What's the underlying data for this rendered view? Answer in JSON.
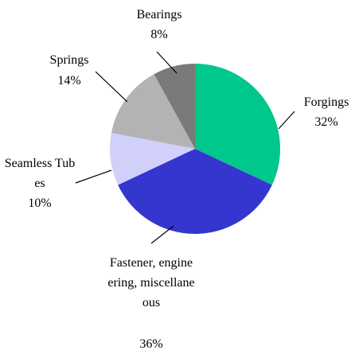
{
  "chart_data": {
    "type": "pie",
    "categories": [
      "Forgings",
      "Fastener, engineering, miscellaneous",
      "Seamless Tubes",
      "Springs",
      "Bearings"
    ],
    "values": [
      32,
      36,
      10,
      14,
      8
    ],
    "value_labels": [
      "32%",
      "36%",
      "10%",
      "14%",
      "8%"
    ],
    "colors": [
      "#00c78c",
      "#3535d0",
      "#d0d0fa",
      "#b3b3b3",
      "#7a7a7a"
    ]
  }
}
